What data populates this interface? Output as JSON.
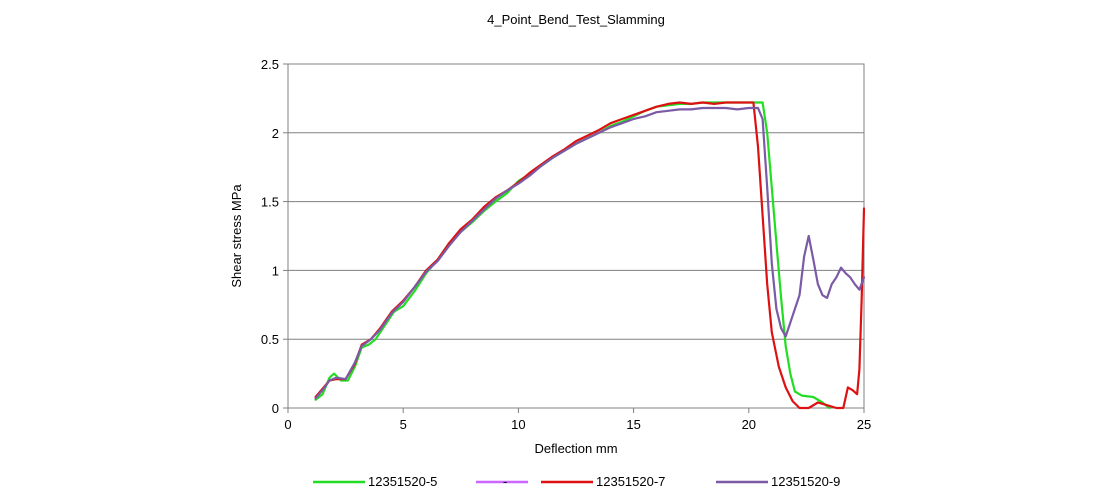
{
  "chart_data": {
    "type": "line",
    "title": "4_Point_Bend_Test_Slamming",
    "xlabel": "Deflection mm",
    "ylabel": "Shear stress MPa",
    "xlim": [
      0,
      25
    ],
    "ylim": [
      0,
      2.5
    ],
    "xticks": [
      "0",
      "5",
      "10",
      "15",
      "20",
      "25"
    ],
    "yticks": [
      "0",
      "0.5",
      "1",
      "1.5",
      "2",
      "2.5"
    ],
    "grid": "horizontal",
    "legend": "bottom",
    "series": [
      {
        "name": "12351520-5",
        "color": "#22dd22",
        "points": [
          [
            1.2,
            0.06
          ],
          [
            1.5,
            0.1
          ],
          [
            1.8,
            0.22
          ],
          [
            2.0,
            0.25
          ],
          [
            2.3,
            0.2
          ],
          [
            2.6,
            0.2
          ],
          [
            2.9,
            0.3
          ],
          [
            3.2,
            0.44
          ],
          [
            3.5,
            0.46
          ],
          [
            3.8,
            0.5
          ],
          [
            4.2,
            0.6
          ],
          [
            4.6,
            0.7
          ],
          [
            5.0,
            0.74
          ],
          [
            5.5,
            0.85
          ],
          [
            6.0,
            0.98
          ],
          [
            6.5,
            1.08
          ],
          [
            7.0,
            1.2
          ],
          [
            7.5,
            1.28
          ],
          [
            8.0,
            1.35
          ],
          [
            8.5,
            1.43
          ],
          [
            9.0,
            1.5
          ],
          [
            9.5,
            1.56
          ],
          [
            10.0,
            1.65
          ],
          [
            10.5,
            1.7
          ],
          [
            11.0,
            1.76
          ],
          [
            11.5,
            1.82
          ],
          [
            12.0,
            1.87
          ],
          [
            12.5,
            1.92
          ],
          [
            13.0,
            1.96
          ],
          [
            13.5,
            2.0
          ],
          [
            14.0,
            2.05
          ],
          [
            14.5,
            2.08
          ],
          [
            15.0,
            2.12
          ],
          [
            15.5,
            2.16
          ],
          [
            16.0,
            2.19
          ],
          [
            16.5,
            2.2
          ],
          [
            17.0,
            2.21
          ],
          [
            17.5,
            2.21
          ],
          [
            18.0,
            2.22
          ],
          [
            18.5,
            2.22
          ],
          [
            19.0,
            2.22
          ],
          [
            19.5,
            2.22
          ],
          [
            20.0,
            2.22
          ],
          [
            20.6,
            2.22
          ],
          [
            20.8,
            2.0
          ],
          [
            21.0,
            1.6
          ],
          [
            21.2,
            1.2
          ],
          [
            21.4,
            0.8
          ],
          [
            21.6,
            0.45
          ],
          [
            21.8,
            0.25
          ],
          [
            22.0,
            0.12
          ],
          [
            22.3,
            0.09
          ],
          [
            22.8,
            0.08
          ],
          [
            23.2,
            0.04
          ],
          [
            23.5,
            0.0
          ]
        ]
      },
      {
        "name": "-",
        "color": "#cc66ff",
        "points": []
      },
      {
        "name": "12351520-7",
        "color": "#dd1111",
        "points": [
          [
            1.2,
            0.08
          ],
          [
            1.5,
            0.14
          ],
          [
            1.8,
            0.2
          ],
          [
            2.1,
            0.21
          ],
          [
            2.5,
            0.21
          ],
          [
            2.9,
            0.32
          ],
          [
            3.2,
            0.46
          ],
          [
            3.6,
            0.5
          ],
          [
            4.0,
            0.58
          ],
          [
            4.5,
            0.7
          ],
          [
            5.0,
            0.78
          ],
          [
            5.5,
            0.88
          ],
          [
            6.0,
            1.0
          ],
          [
            6.5,
            1.08
          ],
          [
            7.0,
            1.2
          ],
          [
            7.5,
            1.3
          ],
          [
            8.0,
            1.37
          ],
          [
            8.5,
            1.46
          ],
          [
            9.0,
            1.53
          ],
          [
            9.5,
            1.58
          ],
          [
            10.0,
            1.64
          ],
          [
            10.5,
            1.71
          ],
          [
            11.0,
            1.77
          ],
          [
            11.5,
            1.83
          ],
          [
            12.0,
            1.88
          ],
          [
            12.5,
            1.94
          ],
          [
            13.0,
            1.98
          ],
          [
            13.5,
            2.02
          ],
          [
            14.0,
            2.07
          ],
          [
            14.5,
            2.1
          ],
          [
            15.0,
            2.13
          ],
          [
            15.5,
            2.16
          ],
          [
            16.0,
            2.19
          ],
          [
            16.5,
            2.21
          ],
          [
            17.0,
            2.22
          ],
          [
            17.5,
            2.21
          ],
          [
            18.0,
            2.22
          ],
          [
            18.5,
            2.21
          ],
          [
            19.0,
            2.22
          ],
          [
            19.5,
            2.22
          ],
          [
            20.2,
            2.22
          ],
          [
            20.4,
            1.9
          ],
          [
            20.6,
            1.4
          ],
          [
            20.8,
            0.9
          ],
          [
            21.0,
            0.55
          ],
          [
            21.3,
            0.3
          ],
          [
            21.6,
            0.15
          ],
          [
            21.9,
            0.05
          ],
          [
            22.2,
            0.0
          ],
          [
            22.6,
            0.0
          ],
          [
            23.0,
            0.04
          ],
          [
            23.4,
            0.02
          ],
          [
            23.8,
            0.0
          ],
          [
            24.1,
            0.0
          ],
          [
            24.3,
            0.15
          ],
          [
            24.5,
            0.13
          ],
          [
            24.7,
            0.1
          ],
          [
            24.8,
            0.28
          ],
          [
            24.9,
            0.8
          ],
          [
            25.0,
            1.45
          ]
        ]
      },
      {
        "name": "12351520-9",
        "color": "#7b5aa6",
        "points": [
          [
            1.2,
            0.07
          ],
          [
            1.5,
            0.13
          ],
          [
            1.8,
            0.2
          ],
          [
            2.1,
            0.22
          ],
          [
            2.5,
            0.21
          ],
          [
            2.9,
            0.33
          ],
          [
            3.2,
            0.45
          ],
          [
            3.6,
            0.5
          ],
          [
            4.0,
            0.57
          ],
          [
            4.5,
            0.69
          ],
          [
            5.0,
            0.77
          ],
          [
            5.5,
            0.88
          ],
          [
            6.0,
            0.99
          ],
          [
            6.5,
            1.07
          ],
          [
            7.0,
            1.18
          ],
          [
            7.5,
            1.28
          ],
          [
            8.0,
            1.36
          ],
          [
            8.5,
            1.44
          ],
          [
            9.0,
            1.52
          ],
          [
            9.5,
            1.58
          ],
          [
            10.0,
            1.63
          ],
          [
            10.5,
            1.69
          ],
          [
            11.0,
            1.76
          ],
          [
            11.5,
            1.82
          ],
          [
            12.0,
            1.87
          ],
          [
            12.5,
            1.92
          ],
          [
            13.0,
            1.96
          ],
          [
            13.5,
            2.0
          ],
          [
            14.0,
            2.04
          ],
          [
            14.5,
            2.07
          ],
          [
            15.0,
            2.1
          ],
          [
            15.5,
            2.12
          ],
          [
            16.0,
            2.15
          ],
          [
            16.5,
            2.16
          ],
          [
            17.0,
            2.17
          ],
          [
            17.5,
            2.17
          ],
          [
            18.0,
            2.18
          ],
          [
            18.5,
            2.18
          ],
          [
            19.0,
            2.18
          ],
          [
            19.5,
            2.17
          ],
          [
            20.0,
            2.18
          ],
          [
            20.4,
            2.18
          ],
          [
            20.6,
            2.1
          ],
          [
            20.8,
            1.6
          ],
          [
            21.0,
            1.05
          ],
          [
            21.2,
            0.72
          ],
          [
            21.4,
            0.58
          ],
          [
            21.6,
            0.52
          ],
          [
            21.8,
            0.62
          ],
          [
            22.0,
            0.72
          ],
          [
            22.2,
            0.82
          ],
          [
            22.4,
            1.1
          ],
          [
            22.6,
            1.25
          ],
          [
            22.8,
            1.08
          ],
          [
            23.0,
            0.9
          ],
          [
            23.2,
            0.82
          ],
          [
            23.4,
            0.8
          ],
          [
            23.6,
            0.9
          ],
          [
            23.8,
            0.95
          ],
          [
            24.0,
            1.02
          ],
          [
            24.2,
            0.98
          ],
          [
            24.4,
            0.95
          ],
          [
            24.6,
            0.9
          ],
          [
            24.8,
            0.86
          ],
          [
            25.0,
            0.95
          ]
        ]
      }
    ]
  }
}
